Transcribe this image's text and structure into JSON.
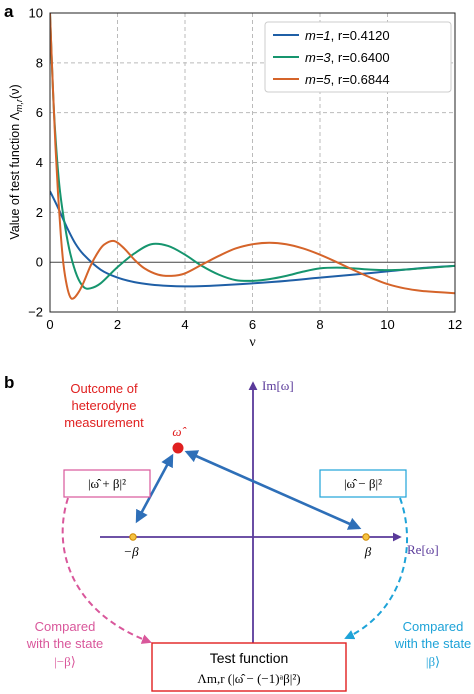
{
  "panel_a": {
    "label": "a",
    "chart_data": {
      "type": "line",
      "title": "",
      "xlabel": "ν",
      "ylabel": "Value of test function Λ",
      "ylabel_sub": "m,r",
      "ylabel_tail": "(ν)",
      "xlim": [
        0,
        12
      ],
      "ylim": [
        -2,
        10
      ],
      "xticks": [
        0,
        2,
        4,
        6,
        8,
        10,
        12
      ],
      "yticks": [
        -2,
        0,
        2,
        4,
        6,
        8,
        10
      ],
      "grid": true,
      "legend_position": "top-right",
      "series": [
        {
          "name_m": "m=1",
          "name_r": "r=0.4120",
          "color": "#1f5fa6",
          "x": [
            0,
            0.25,
            0.5,
            0.75,
            1,
            1.5,
            2,
            2.5,
            3,
            3.5,
            4,
            4.5,
            5,
            6,
            7,
            8,
            9,
            10,
            11,
            12
          ],
          "y": [
            2.85,
            2.15,
            1.4,
            0.75,
            0.3,
            -0.3,
            -0.62,
            -0.8,
            -0.9,
            -0.95,
            -0.97,
            -0.96,
            -0.93,
            -0.85,
            -0.75,
            -0.62,
            -0.5,
            -0.37,
            -0.24,
            -0.15
          ]
        },
        {
          "name_m": "m=3",
          "name_r": "r=0.6400",
          "color": "#16956e",
          "x": [
            0,
            0.1,
            0.2,
            0.3,
            0.45,
            0.6,
            0.8,
            1,
            1.2,
            1.5,
            2,
            2.5,
            3,
            3.5,
            4,
            4.5,
            5,
            5.5,
            6,
            6.5,
            7,
            7.5,
            8,
            8.5,
            9,
            9.5,
            10,
            10.5,
            11,
            11.5,
            12
          ],
          "y": [
            10,
            6.5,
            4.3,
            2.8,
            1.4,
            0.35,
            -0.55,
            -1.0,
            -1.05,
            -0.85,
            -0.2,
            0.35,
            0.72,
            0.65,
            0.3,
            -0.15,
            -0.5,
            -0.72,
            -0.75,
            -0.68,
            -0.55,
            -0.38,
            -0.25,
            -0.22,
            -0.25,
            -0.3,
            -0.32,
            -0.3,
            -0.25,
            -0.2,
            -0.15
          ]
        },
        {
          "name_m": "m=5",
          "name_r": "r=0.6844",
          "color": "#d5642a",
          "x": [
            0,
            0.08,
            0.16,
            0.24,
            0.32,
            0.4,
            0.5,
            0.6,
            0.7,
            0.85,
            1,
            1.2,
            1.4,
            1.6,
            1.9,
            2.2,
            2.5,
            2.8,
            3.2,
            3.6,
            4,
            4.5,
            5,
            5.5,
            6,
            6.5,
            7,
            7.5,
            8,
            8.5,
            9,
            9.5,
            10,
            10.5,
            11,
            11.5,
            12
          ],
          "y": [
            10,
            7.2,
            4.7,
            2.7,
            1.1,
            -0.1,
            -0.95,
            -1.4,
            -1.45,
            -1.2,
            -0.8,
            -0.15,
            0.35,
            0.7,
            0.85,
            0.55,
            0.1,
            -0.25,
            -0.5,
            -0.55,
            -0.45,
            -0.1,
            0.25,
            0.55,
            0.72,
            0.78,
            0.72,
            0.55,
            0.3,
            0.0,
            -0.32,
            -0.62,
            -0.88,
            -1.05,
            -1.15,
            -1.2,
            -1.25
          ]
        }
      ]
    }
  },
  "panel_b": {
    "label": "b",
    "axis_re": "Re[ω]",
    "axis_im": "Im[ω]",
    "outcome_line1": "Outcome of",
    "outcome_line2": "heterodyne",
    "outcome_line3": "measurement",
    "omega_hat": "ω̂",
    "box_left": "|ω̂ + β|²",
    "box_right": "|ω̂ − β|²",
    "point_minus_beta": "−β",
    "point_beta": "β",
    "compared_left_1": "Compared",
    "compared_left_2": "with the state",
    "compared_left_3": "|−β⟩",
    "compared_right_1": "Compared",
    "compared_right_2": "with the state",
    "compared_right_3": "|β⟩",
    "test_title": "Test function",
    "test_formula": "Λm,r (|ω̂ − (−1)ᵃβ|²)",
    "colors": {
      "axis": "#5a3a9a",
      "outcome": "#e02020",
      "arrow": "#2e6fb8",
      "left": "#d9579b",
      "right": "#1ea3d8",
      "box": "#e02020",
      "point": "#f0a020"
    }
  }
}
